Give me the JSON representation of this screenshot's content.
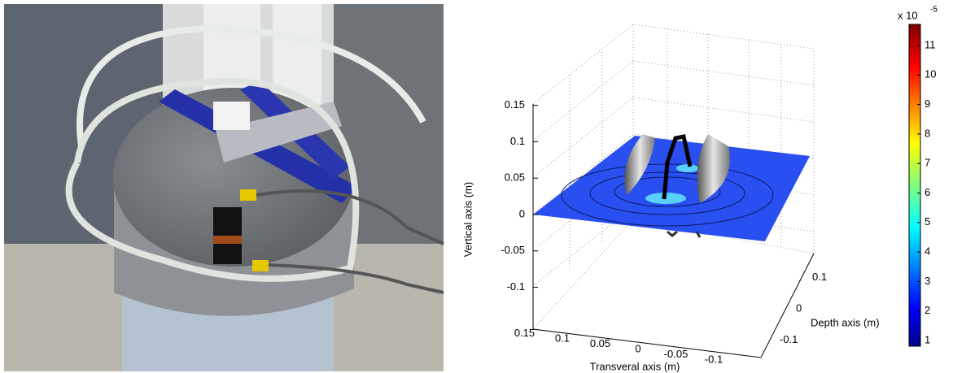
{
  "plot": {
    "z_axis": {
      "label": "Vertical axis (m)",
      "ticks": [
        0.15,
        0.1,
        0.05,
        0,
        -0.05,
        -0.1
      ]
    },
    "x_axis": {
      "label": "Transveral axis (m)",
      "ticks": [
        0.15,
        0.1,
        0.05,
        0,
        -0.05,
        -0.1
      ]
    },
    "y_axis": {
      "label": "Depth axis (m)",
      "ticks": [
        0.1,
        0,
        -0.1
      ]
    },
    "colorbar": {
      "multiplier": "x 10",
      "exponent": "-5",
      "ticks": [
        1,
        2,
        3,
        4,
        5,
        6,
        7,
        8,
        9,
        10,
        11
      ]
    }
  }
}
